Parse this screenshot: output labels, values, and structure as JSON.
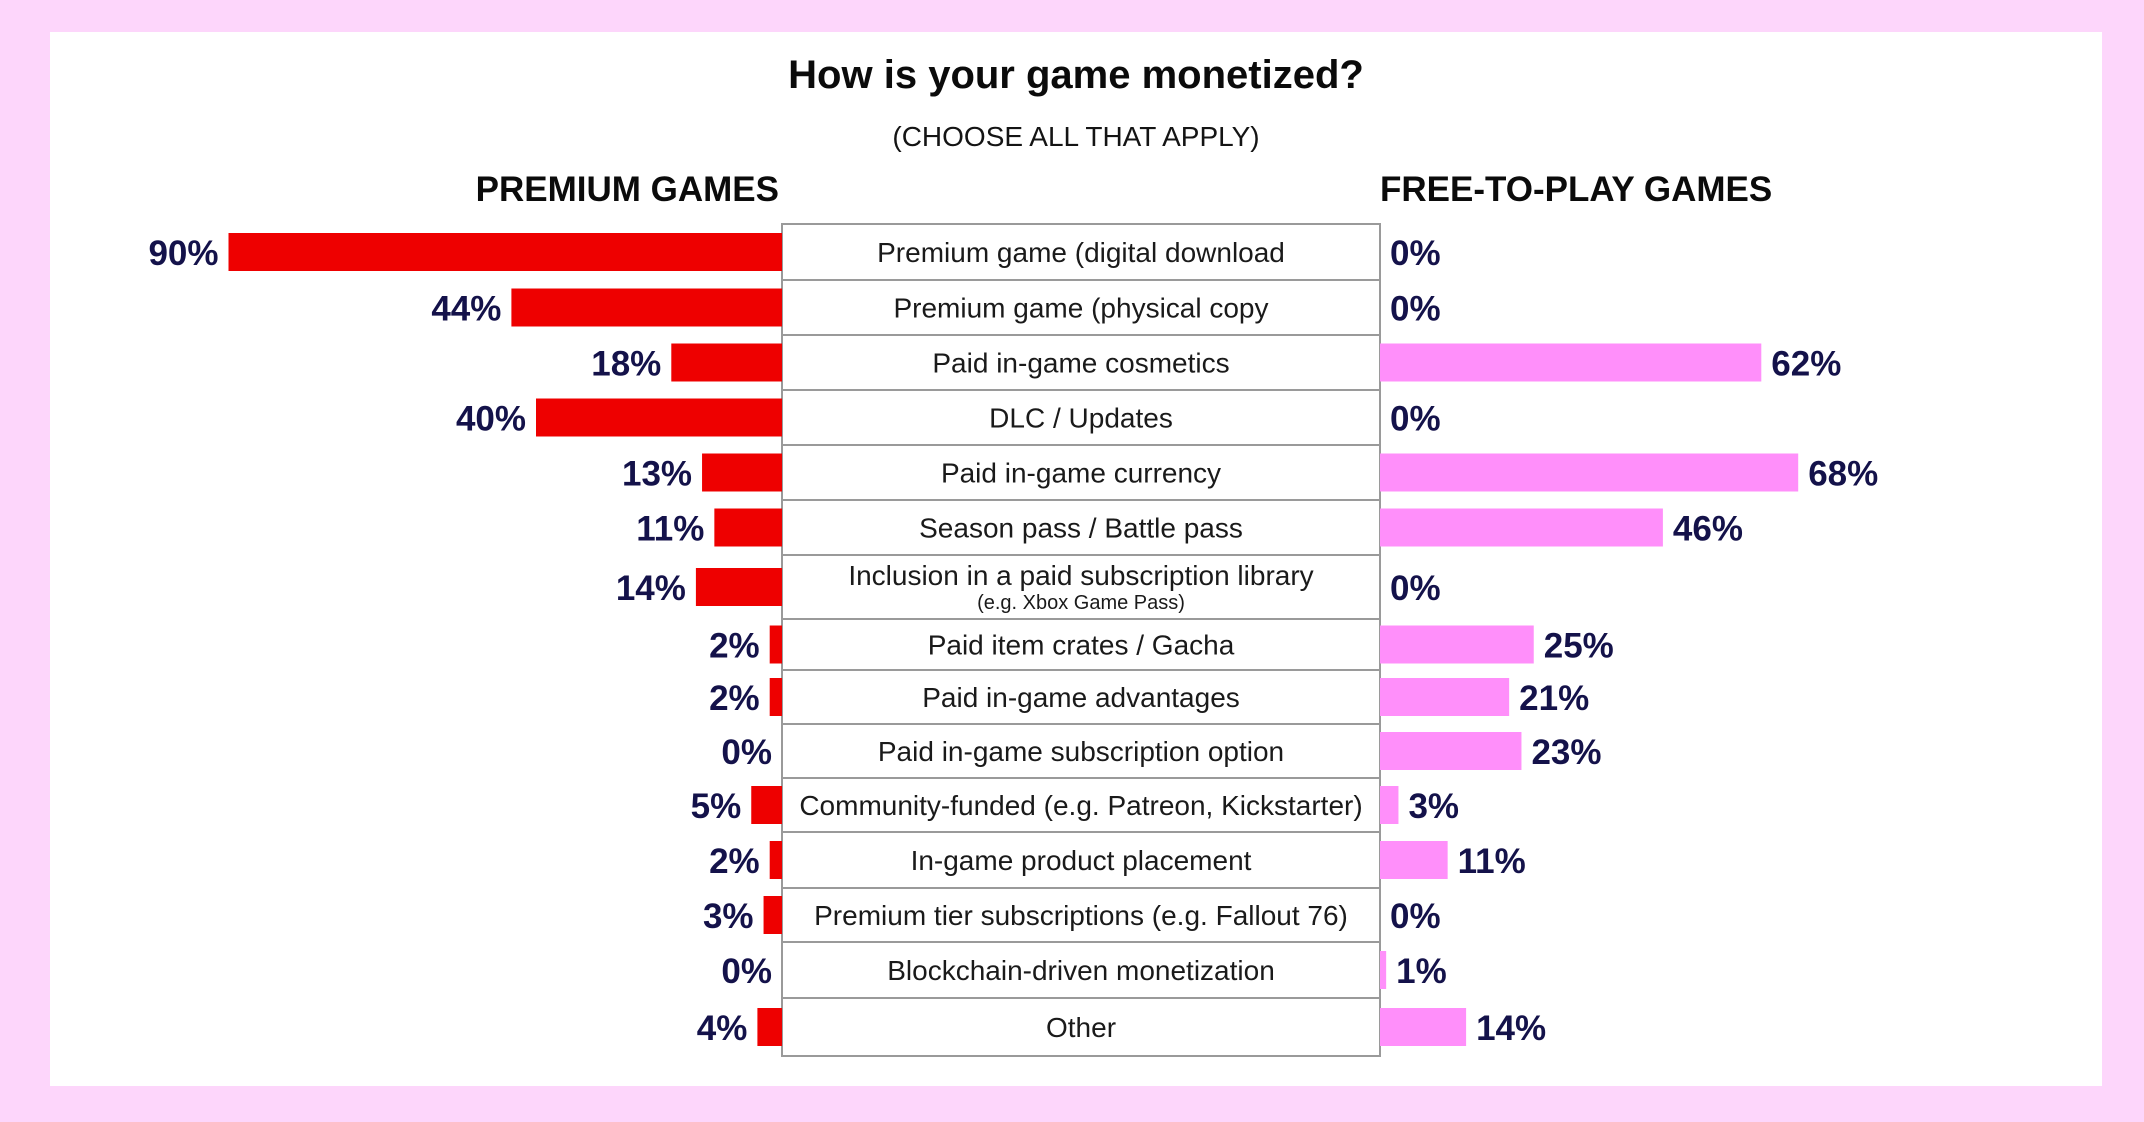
{
  "chart_data": {
    "type": "bar",
    "title": "How is your game monetized?",
    "subtitle": "(CHOOSE ALL THAT APPLY)",
    "xlim": [
      0,
      100
    ],
    "categories": [
      "Premium game (digital download",
      "Premium game (physical copy",
      "Paid in-game cosmetics",
      "DLC / Updates",
      "Paid in-game currency",
      "Season pass / Battle pass",
      "Inclusion in a paid subscription library",
      "Paid item crates / Gacha",
      "Paid in-game advantages",
      "Paid in-game subscription option",
      "Community-funded (e.g. Patreon, Kickstarter)",
      "In-game product placement",
      "Premium tier subscriptions (e.g. Fallout 76)",
      "Blockchain-driven monetization",
      "Other"
    ],
    "category_notes": [
      "",
      "",
      "",
      "",
      "",
      "",
      "(e.g. Xbox Game Pass)",
      "",
      "",
      "",
      "",
      "",
      "",
      "",
      ""
    ],
    "series": [
      {
        "name": "PREMIUM GAMES",
        "color": "#ee0000",
        "values": [
          90,
          44,
          18,
          40,
          13,
          11,
          14,
          2,
          2,
          0,
          5,
          2,
          3,
          0,
          4
        ],
        "labels": [
          "90%",
          "44%",
          "18%",
          "40%",
          "13%",
          "11%",
          "14%",
          "2%",
          "2%",
          "0%",
          "5%",
          "2%",
          "3%",
          "0%",
          "4%"
        ]
      },
      {
        "name": "FREE-TO-PLAY GAMES",
        "color": "#ff8ffa",
        "values": [
          0,
          0,
          62,
          0,
          68,
          46,
          0,
          25,
          21,
          23,
          3,
          11,
          0,
          1,
          14
        ],
        "labels": [
          "0%",
          "0%",
          "62%",
          "0%",
          "68%",
          "46%",
          "0%",
          "25%",
          "21%",
          "23%",
          "3%",
          "11%",
          "0%",
          "1%",
          "14%"
        ]
      }
    ],
    "colors": {
      "page_background": "#fdd6fb",
      "card_background": "#ffffff",
      "value_text": "#14124a",
      "table_border": "#9a9a9a"
    }
  }
}
